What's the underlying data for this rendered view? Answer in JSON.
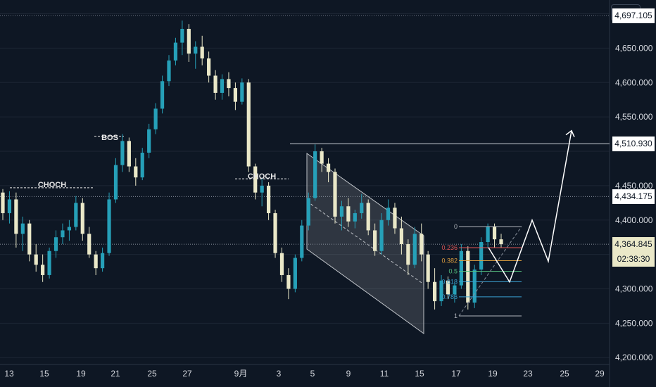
{
  "currency": "USD",
  "colors": {
    "background": "#0e1724",
    "up": "#26a0b8",
    "down": "#eae8c8",
    "grid": "#1d2634",
    "line": "#cfd3da"
  },
  "price_axis": {
    "ticks": [
      "4,650.000",
      "4,600.000",
      "4,550.000",
      "4,450.000",
      "4,400.000",
      "4,300.000",
      "4,250.000",
      "4,200.000"
    ]
  },
  "price_tags": [
    {
      "value": "4,697.105",
      "style": "white"
    },
    {
      "value": "4,510.930",
      "style": "white"
    },
    {
      "value": "4,434.175",
      "style": "white"
    },
    {
      "value": "4,364.845",
      "style": "current"
    }
  ],
  "countdown": "02:38:30",
  "time_axis": {
    "ticks": [
      "13",
      "15",
      "19",
      "21",
      "25",
      "27",
      "9月",
      "3",
      "5",
      "9",
      "11",
      "15",
      "17",
      "19",
      "23",
      "25",
      "29"
    ]
  },
  "annotations": {
    "choch_left": "CHOCH",
    "bos": "BOS",
    "choch_right": "CHOCH"
  },
  "fibonacci": {
    "levels": [
      "0",
      "0.236",
      "0.382",
      "0.5",
      "0.618",
      "0.786",
      "1"
    ],
    "colors": [
      "#b0b4bb",
      "#e05656",
      "#e0a040",
      "#56c080",
      "#3aa0d0",
      "#3aa0d0",
      "#b0b4bb"
    ]
  },
  "chart_data": {
    "type": "candlestick",
    "title": "",
    "y_range": [
      4190,
      4720
    ],
    "candles": [
      [
        4440,
        4445,
        4400,
        4410
      ],
      [
        4410,
        4442,
        4395,
        4430
      ],
      [
        4430,
        4440,
        4360,
        4380
      ],
      [
        4380,
        4405,
        4355,
        4395
      ],
      [
        4395,
        4400,
        4340,
        4350
      ],
      [
        4350,
        4365,
        4325,
        4335
      ],
      [
        4335,
        4350,
        4310,
        4320
      ],
      [
        4320,
        4360,
        4315,
        4355
      ],
      [
        4355,
        4385,
        4345,
        4375
      ],
      [
        4375,
        4395,
        4365,
        4385
      ],
      [
        4385,
        4400,
        4370,
        4390
      ],
      [
        4390,
        4435,
        4385,
        4425
      ],
      [
        4425,
        4432,
        4370,
        4380
      ],
      [
        4380,
        4390,
        4345,
        4350
      ],
      [
        4350,
        4355,
        4320,
        4330
      ],
      [
        4330,
        4360,
        4325,
        4352
      ],
      [
        4352,
        4440,
        4348,
        4430
      ],
      [
        4430,
        4490,
        4425,
        4480
      ],
      [
        4480,
        4525,
        4470,
        4515
      ],
      [
        4515,
        4520,
        4470,
        4478
      ],
      [
        4478,
        4490,
        4450,
        4462
      ],
      [
        4462,
        4505,
        4458,
        4498
      ],
      [
        4498,
        4540,
        4490,
        4532
      ],
      [
        4532,
        4570,
        4525,
        4562
      ],
      [
        4562,
        4610,
        4555,
        4602
      ],
      [
        4602,
        4640,
        4595,
        4632
      ],
      [
        4632,
        4665,
        4625,
        4658
      ],
      [
        4658,
        4690,
        4640,
        4678
      ],
      [
        4678,
        4685,
        4630,
        4642
      ],
      [
        4642,
        4660,
        4620,
        4652
      ],
      [
        4652,
        4668,
        4625,
        4635
      ],
      [
        4635,
        4645,
        4600,
        4610
      ],
      [
        4610,
        4618,
        4575,
        4585
      ],
      [
        4585,
        4612,
        4575,
        4605
      ],
      [
        4605,
        4615,
        4580,
        4592
      ],
      [
        4592,
        4600,
        4560,
        4572
      ],
      [
        4572,
        4606,
        4568,
        4600
      ],
      [
        4600,
        4605,
        4470,
        4478
      ],
      [
        4478,
        4482,
        4430,
        4440
      ],
      [
        4440,
        4460,
        4420,
        4450
      ],
      [
        4450,
        4455,
        4400,
        4410
      ],
      [
        4410,
        4415,
        4345,
        4352
      ],
      [
        4352,
        4360,
        4310,
        4320
      ],
      [
        4320,
        4330,
        4285,
        4300
      ],
      [
        4300,
        4350,
        4295,
        4345
      ],
      [
        4345,
        4400,
        4340,
        4392
      ],
      [
        4392,
        4440,
        4385,
        4432
      ],
      [
        4432,
        4510,
        4428,
        4500
      ],
      [
        4500,
        4505,
        4470,
        4482
      ],
      [
        4482,
        4490,
        4455,
        4470
      ],
      [
        4470,
        4475,
        4395,
        4405
      ],
      [
        4405,
        4428,
        4385,
        4420
      ],
      [
        4420,
        4432,
        4390,
        4398
      ],
      [
        4398,
        4415,
        4388,
        4410
      ],
      [
        4410,
        4438,
        4402,
        4425
      ],
      [
        4425,
        4430,
        4378,
        4385
      ],
      [
        4385,
        4395,
        4348,
        4355
      ],
      [
        4355,
        4410,
        4350,
        4400
      ],
      [
        4400,
        4430,
        4392,
        4418
      ],
      [
        4418,
        4425,
        4380,
        4388
      ],
      [
        4388,
        4405,
        4350,
        4365
      ],
      [
        4365,
        4372,
        4320,
        4335
      ],
      [
        4335,
        4390,
        4330,
        4380
      ],
      [
        4380,
        4395,
        4340,
        4350
      ],
      [
        4350,
        4355,
        4300,
        4310
      ],
      [
        4310,
        4330,
        4270,
        4282
      ],
      [
        4282,
        4320,
        4275,
        4312
      ],
      [
        4312,
        4318,
        4285,
        4292
      ],
      [
        4292,
        4310,
        4280,
        4305
      ],
      [
        4305,
        4365,
        4300,
        4355
      ],
      [
        4355,
        4362,
        4270,
        4280
      ],
      [
        4280,
        4335,
        4272,
        4328
      ],
      [
        4328,
        4375,
        4320,
        4368
      ],
      [
        4368,
        4395,
        4360,
        4390
      ],
      [
        4390,
        4395,
        4360,
        4372
      ],
      [
        4372,
        4380,
        4360,
        4365
      ]
    ],
    "projection": [
      4360,
      4310,
      4400,
      4340,
      4530
    ],
    "levels": {
      "high": 4697.105,
      "resistance": 4510.93,
      "choch_level": 4434.175,
      "current": 4364.845
    }
  }
}
